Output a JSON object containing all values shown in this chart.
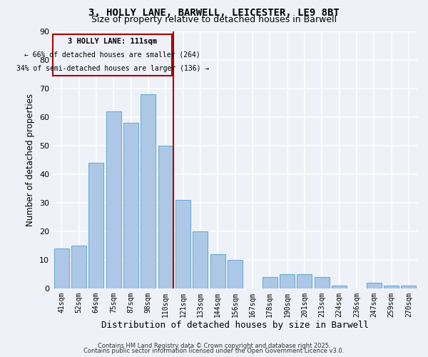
{
  "title_line1": "3, HOLLY LANE, BARWELL, LEICESTER, LE9 8BT",
  "title_line2": "Size of property relative to detached houses in Barwell",
  "xlabel": "Distribution of detached houses by size in Barwell",
  "ylabel": "Number of detached properties",
  "bar_labels": [
    "41sqm",
    "52sqm",
    "64sqm",
    "75sqm",
    "87sqm",
    "98sqm",
    "110sqm",
    "121sqm",
    "133sqm",
    "144sqm",
    "156sqm",
    "167sqm",
    "178sqm",
    "190sqm",
    "201sqm",
    "213sqm",
    "224sqm",
    "236sqm",
    "247sqm",
    "259sqm",
    "270sqm"
  ],
  "bar_values": [
    14,
    15,
    44,
    62,
    58,
    68,
    50,
    31,
    20,
    12,
    10,
    0,
    4,
    5,
    5,
    4,
    1,
    0,
    2,
    1,
    1
  ],
  "bar_color": "#adc8e6",
  "bar_edge_color": "#6aaad4",
  "highlight_bar_index": 6,
  "highlight_color": "#aa0000",
  "ylim": [
    0,
    90
  ],
  "yticks": [
    0,
    10,
    20,
    30,
    40,
    50,
    60,
    70,
    80,
    90
  ],
  "annotation_title": "3 HOLLY LANE: 111sqm",
  "annotation_line2": "← 66% of detached houses are smaller (264)",
  "annotation_line3": "34% of semi-detached houses are larger (136) →",
  "annotation_box_color": "#aa0000",
  "background_color": "#eef2f8",
  "grid_color": "#ffffff",
  "footer_line1": "Contains HM Land Registry data © Crown copyright and database right 2025.",
  "footer_line2": "Contains public sector information licensed under the Open Government Licence v3.0."
}
